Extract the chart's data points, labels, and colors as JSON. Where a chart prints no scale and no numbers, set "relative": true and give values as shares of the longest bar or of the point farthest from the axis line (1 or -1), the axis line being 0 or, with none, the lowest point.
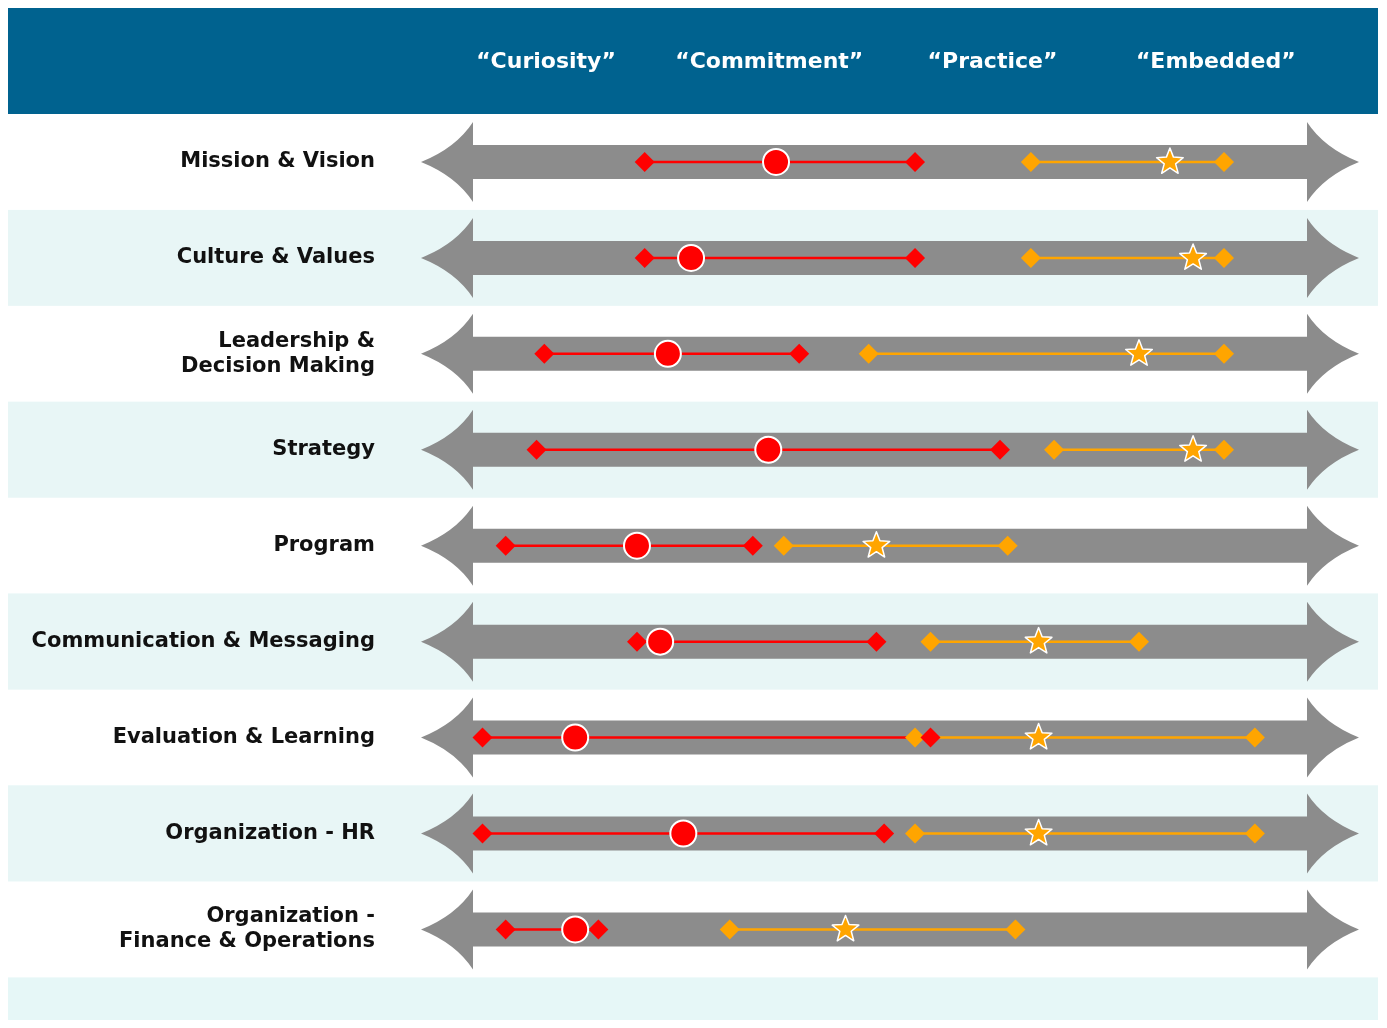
{
  "chart_data": {
    "type": "scatter",
    "orientation": "horizontal",
    "relative": true,
    "categories": [
      "Mission & Vision",
      "Culture & Values",
      "Leadership & Decision Making",
      "Strategy",
      "Program",
      "Communication & Messaging",
      "Evaluation & Learning",
      "Organization - HR",
      "Organization - Finance & Operations"
    ],
    "annotations": [
      "“Curiosity”",
      "“Commitment”",
      "“Practice”",
      "“Embedded”"
    ],
    "grid": false,
    "legend": false,
    "series": [
      {
        "color": "#ff0000",
        "marker": "circle",
        "values": [
          0.38,
          0.27,
          0.24,
          0.37,
          0.2,
          0.23,
          0.12,
          0.26,
          0.12
        ]
      },
      {
        "color": "#ffa500",
        "marker": "star",
        "values": [
          0.89,
          0.92,
          0.85,
          0.92,
          0.51,
          0.72,
          0.72,
          0.72,
          0.47
        ]
      },
      {
        "color": "#ff0000",
        "marker": "diamond",
        "values": [
          0.21,
          0.21,
          0.08,
          0.07,
          0.03,
          0.2,
          0,
          0,
          0.03
        ]
      },
      {
        "color": "#ff0000",
        "marker": "diamond",
        "values": [
          0.56,
          0.56,
          0.41,
          0.67,
          0.35,
          0.51,
          0.58,
          0.52,
          0.15
        ]
      },
      {
        "color": "#ffa500",
        "marker": "diamond",
        "values": [
          0.71,
          0.71,
          0.5,
          0.74,
          0.39,
          0.58,
          0.56,
          0.56,
          0.32
        ]
      },
      {
        "color": "#ffa500",
        "marker": "diamond",
        "values": [
          0.96,
          0.96,
          0.96,
          0.96,
          0.68,
          0.85,
          1,
          1,
          0.69
        ]
      }
    ]
  }
}
